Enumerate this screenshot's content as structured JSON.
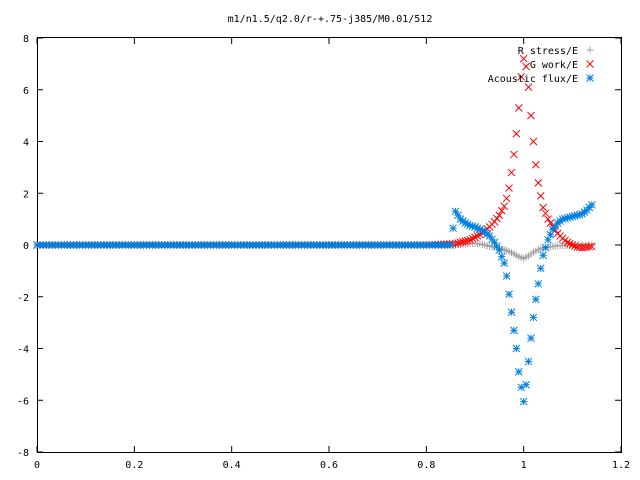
{
  "chart_data": {
    "type": "scatter",
    "title": "m1/n1.5/q2.0/r-+.75-j385/M0.01/512",
    "xlabel": "",
    "ylabel": "",
    "xlim": [
      0,
      1.2
    ],
    "ylim": [
      -8,
      8
    ],
    "x_ticks": [
      "0",
      "0.2",
      "0.4",
      "0.6",
      "0.8",
      "1",
      "1.2"
    ],
    "y_ticks": [
      "8",
      "6",
      "4",
      "2",
      "0",
      "-2",
      "-4",
      "-6",
      "-8"
    ],
    "grid": false,
    "legend_position": "top-right",
    "series": [
      {
        "name": "R stress/E",
        "marker": "plus",
        "color": "#a0a0a0",
        "points": [
          [
            0.0,
            0.0
          ],
          [
            0.1,
            0.0
          ],
          [
            0.2,
            0.0
          ],
          [
            0.3,
            0.0
          ],
          [
            0.4,
            0.0
          ],
          [
            0.5,
            0.0
          ],
          [
            0.6,
            0.0
          ],
          [
            0.7,
            0.0
          ],
          [
            0.8,
            0.0
          ],
          [
            0.86,
            0.0
          ],
          [
            0.87,
            0.02
          ],
          [
            0.88,
            0.04
          ],
          [
            0.89,
            0.06
          ],
          [
            0.9,
            0.06
          ],
          [
            0.91,
            0.04
          ],
          [
            0.92,
            0.0
          ],
          [
            0.93,
            -0.05
          ],
          [
            0.94,
            -0.08
          ],
          [
            0.95,
            -0.12
          ],
          [
            0.96,
            -0.18
          ],
          [
            0.97,
            -0.25
          ],
          [
            0.98,
            -0.35
          ],
          [
            0.99,
            -0.45
          ],
          [
            1.0,
            -0.52
          ],
          [
            1.01,
            -0.42
          ],
          [
            1.02,
            -0.28
          ],
          [
            1.03,
            -0.18
          ],
          [
            1.04,
            -0.12
          ],
          [
            1.05,
            -0.08
          ],
          [
            1.06,
            -0.05
          ],
          [
            1.07,
            -0.03
          ],
          [
            1.08,
            -0.02
          ],
          [
            1.09,
            -0.01
          ],
          [
            1.1,
            0.0
          ],
          [
            1.12,
            0.0
          ],
          [
            1.14,
            0.0
          ]
        ]
      },
      {
        "name": "G work/E",
        "marker": "cross",
        "color": "#ff0000",
        "points": [
          [
            0.0,
            0.0
          ],
          [
            0.1,
            0.0
          ],
          [
            0.2,
            0.0
          ],
          [
            0.3,
            0.0
          ],
          [
            0.4,
            0.0
          ],
          [
            0.5,
            0.0
          ],
          [
            0.6,
            0.0
          ],
          [
            0.7,
            0.0
          ],
          [
            0.8,
            0.0
          ],
          [
            0.86,
            0.05
          ],
          [
            0.87,
            0.1
          ],
          [
            0.88,
            0.15
          ],
          [
            0.89,
            0.2
          ],
          [
            0.9,
            0.3
          ],
          [
            0.91,
            0.4
          ],
          [
            0.92,
            0.55
          ],
          [
            0.93,
            0.7
          ],
          [
            0.94,
            0.9
          ],
          [
            0.95,
            1.15
          ],
          [
            0.96,
            1.5
          ],
          [
            0.965,
            1.8
          ],
          [
            0.97,
            2.2
          ],
          [
            0.975,
            2.8
          ],
          [
            0.98,
            3.5
          ],
          [
            0.985,
            4.3
          ],
          [
            0.99,
            5.3
          ],
          [
            0.995,
            6.5
          ],
          [
            1.0,
            7.2
          ],
          [
            1.005,
            6.9
          ],
          [
            1.01,
            6.1
          ],
          [
            1.015,
            5.0
          ],
          [
            1.02,
            4.0
          ],
          [
            1.025,
            3.1
          ],
          [
            1.03,
            2.4
          ],
          [
            1.035,
            1.9
          ],
          [
            1.04,
            1.45
          ],
          [
            1.05,
            1.0
          ],
          [
            1.06,
            0.7
          ],
          [
            1.07,
            0.45
          ],
          [
            1.08,
            0.25
          ],
          [
            1.09,
            0.1
          ],
          [
            1.1,
            0.0
          ],
          [
            1.11,
            -0.08
          ],
          [
            1.12,
            -0.1
          ],
          [
            1.13,
            -0.08
          ],
          [
            1.14,
            -0.05
          ]
        ]
      },
      {
        "name": "Acoustic flux/E",
        "marker": "star",
        "color": "#0080e0",
        "points": [
          [
            0.0,
            0.0
          ],
          [
            0.1,
            0.0
          ],
          [
            0.2,
            0.0
          ],
          [
            0.3,
            0.0
          ],
          [
            0.4,
            0.0
          ],
          [
            0.5,
            0.0
          ],
          [
            0.6,
            0.0
          ],
          [
            0.7,
            0.0
          ],
          [
            0.8,
            0.0
          ],
          [
            0.85,
            0.0
          ],
          [
            0.86,
            1.3
          ],
          [
            0.87,
            1.0
          ],
          [
            0.88,
            0.85
          ],
          [
            0.89,
            0.75
          ],
          [
            0.9,
            0.7
          ],
          [
            0.91,
            0.6
          ],
          [
            0.92,
            0.5
          ],
          [
            0.93,
            0.35
          ],
          [
            0.94,
            0.1
          ],
          [
            0.95,
            -0.2
          ],
          [
            0.96,
            -0.7
          ],
          [
            0.965,
            -1.2
          ],
          [
            0.97,
            -1.9
          ],
          [
            0.975,
            -2.6
          ],
          [
            0.98,
            -3.3
          ],
          [
            0.985,
            -4.0
          ],
          [
            0.99,
            -4.9
          ],
          [
            0.995,
            -5.5
          ],
          [
            1.0,
            -6.05
          ],
          [
            1.005,
            -5.4
          ],
          [
            1.01,
            -4.5
          ],
          [
            1.015,
            -3.6
          ],
          [
            1.02,
            -2.8
          ],
          [
            1.025,
            -2.1
          ],
          [
            1.03,
            -1.5
          ],
          [
            1.035,
            -0.9
          ],
          [
            1.04,
            -0.4
          ],
          [
            1.05,
            0.2
          ],
          [
            1.06,
            0.6
          ],
          [
            1.07,
            0.85
          ],
          [
            1.08,
            1.0
          ],
          [
            1.09,
            1.05
          ],
          [
            1.1,
            1.1
          ],
          [
            1.11,
            1.15
          ],
          [
            1.12,
            1.2
          ],
          [
            1.13,
            1.35
          ],
          [
            1.14,
            1.55
          ]
        ]
      }
    ]
  }
}
